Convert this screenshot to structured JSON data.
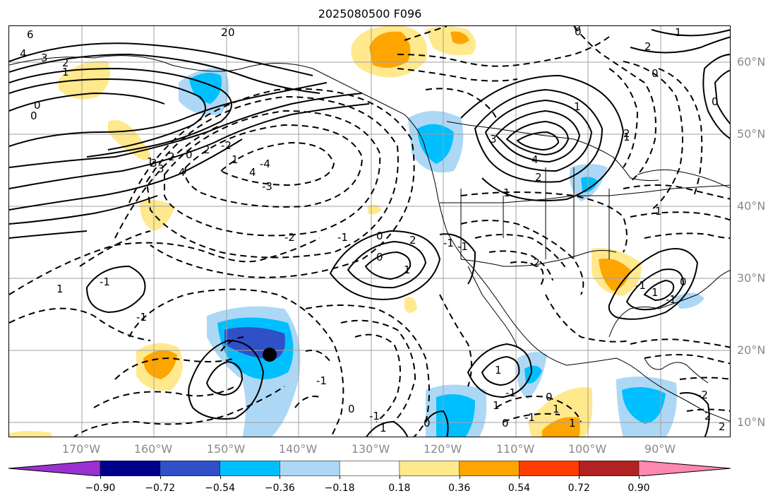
{
  "title": "2025080500 F096",
  "lat_labels": [
    "60°N",
    "50°N",
    "40°N",
    "30°N",
    "20°N",
    "10°N"
  ],
  "lon_labels": [
    "170°W",
    "160°W",
    "150°W",
    "140°W",
    "130°W",
    "120°W",
    "110°W",
    "100°W",
    "90°W"
  ],
  "colorbar": {
    "tick_labels": [
      "−0.90",
      "−0.72",
      "−0.54",
      "−0.36",
      "−0.18",
      "0.18",
      "0.36",
      "0.54",
      "0.72",
      "0.90"
    ],
    "colors": [
      "#9b30d0",
      "#00008b",
      "#3050c8",
      "#00bfff",
      "#add8f5",
      "#ffffff",
      "#ffe98c",
      "#ffa500",
      "#ff3c00",
      "#b22222",
      "#ff88b0"
    ]
  },
  "contour_labels": [
    "6",
    "4",
    "3",
    "2",
    "1",
    "0",
    "0",
    "2",
    "0",
    "3",
    "2",
    "4",
    "0",
    "2",
    "1",
    "3",
    "4",
    "1",
    "2",
    "1",
    "0",
    "0",
    "2",
    "1",
    "0",
    "1",
    "0",
    "-4",
    "-3",
    "-2",
    "-1",
    "2",
    "1",
    "-2",
    "1",
    "3",
    "4",
    "-2",
    "-1",
    "-1",
    "1",
    "0",
    "-1",
    "-1",
    "0",
    "-1",
    "0",
    "-1",
    "1",
    "0",
    "1",
    "-1",
    "1",
    "0",
    "-1",
    "0",
    "1",
    "1",
    "-1",
    "1",
    "0",
    "-1",
    "2",
    "1",
    "-2",
    "2",
    "2"
  ],
  "marker": "storm-center-dot"
}
